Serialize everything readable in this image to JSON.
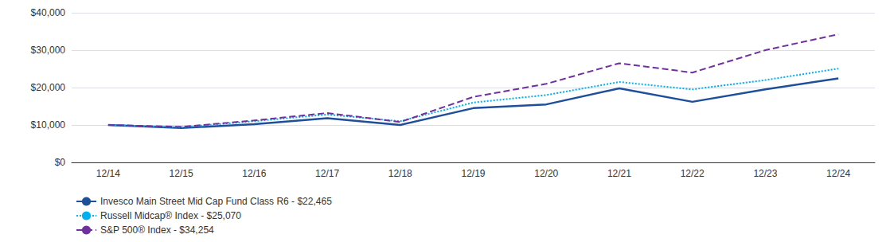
{
  "chart_data": {
    "type": "line",
    "categories": [
      "12/14",
      "12/15",
      "12/16",
      "12/17",
      "12/18",
      "12/19",
      "12/20",
      "12/21",
      "12/22",
      "12/23",
      "12/24"
    ],
    "series": [
      {
        "name": "Invesco Main Street Mid Cap Fund Class R6 - $22,465",
        "color": "#1f4e9b",
        "line_style": "solid",
        "values": [
          10000,
          9200,
          10200,
          11800,
          10000,
          14500,
          15500,
          19800,
          16200,
          19500,
          22465
        ]
      },
      {
        "name": "Russell Midcap® Index - $25,070",
        "color": "#00b0f0",
        "line_style": "dotted",
        "values": [
          10000,
          9400,
          11000,
          12800,
          11000,
          16000,
          18000,
          21500,
          19500,
          22000,
          25070
        ]
      },
      {
        "name": "S&P 500® Index - $34,254",
        "color": "#7030a0",
        "line_style": "dashed",
        "values": [
          10000,
          9500,
          11200,
          13200,
          10800,
          17500,
          21000,
          26500,
          24000,
          30000,
          34254
        ]
      }
    ],
    "ylim": [
      0,
      40000
    ],
    "yticks": [
      {
        "value": 0,
        "label": "$0"
      },
      {
        "value": 10000,
        "label": "$10,000"
      },
      {
        "value": 20000,
        "label": "$20,000"
      },
      {
        "value": 30000,
        "label": "$30,000"
      },
      {
        "value": 40000,
        "label": "$40,000"
      }
    ],
    "grid": true,
    "legend": "lower left"
  }
}
